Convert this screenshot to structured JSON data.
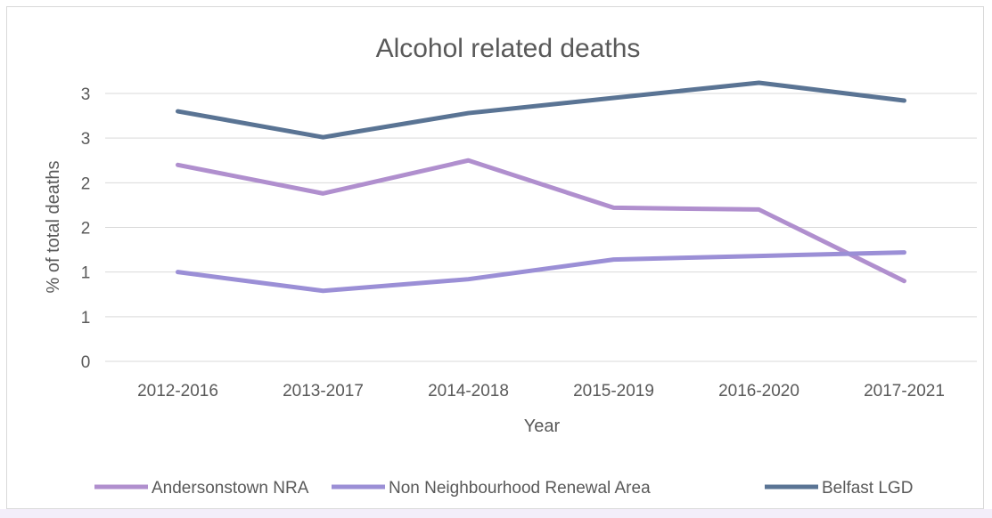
{
  "chart_data": {
    "type": "line",
    "title": "Alcohol related deaths",
    "xlabel": "Year",
    "ylabel": "% of total deaths",
    "categories": [
      "2012-2016",
      "2013-2017",
      "2014-2018",
      "2015-2019",
      "2016-2020",
      "2017-2021"
    ],
    "y_tick_labels": [
      "0",
      "1",
      "1",
      "2",
      "2",
      "3",
      "3"
    ],
    "ylim": [
      0,
      3
    ],
    "y_tick_step": 0.5,
    "grid": true,
    "legend_position": "bottom",
    "series": [
      {
        "name": "Andersonstown NRA",
        "color": "#b08fce",
        "values": [
          2.2,
          1.88,
          2.25,
          1.72,
          1.7,
          0.9
        ]
      },
      {
        "name": "Non Neighbourhood Renewal Area",
        "color": "#9b8fd6",
        "values": [
          1.0,
          0.79,
          0.92,
          1.14,
          1.18,
          1.22
        ]
      },
      {
        "name": "Belfast LGD",
        "color": "#5a7494",
        "values": [
          2.8,
          2.51,
          2.78,
          2.95,
          3.12,
          2.92
        ]
      }
    ]
  }
}
